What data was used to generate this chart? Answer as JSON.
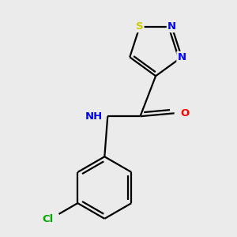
{
  "background_color": "#ebebeb",
  "atom_colors": {
    "S": "#cccc00",
    "N": "#0000ff",
    "O": "#ff0000",
    "C": "#000000",
    "H": "#555555",
    "Cl": "#00aa00"
  },
  "bond_color": "#000000",
  "bond_width": 1.6,
  "font_size_atoms": 9.5,
  "fig_size": [
    3.0,
    3.0
  ],
  "dpi": 100
}
